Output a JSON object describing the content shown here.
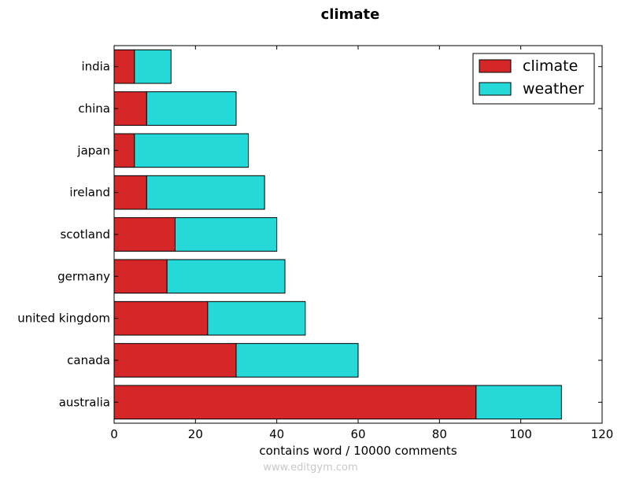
{
  "chart_data": {
    "type": "bar",
    "orientation": "horizontal",
    "stacked": true,
    "title": "climate",
    "xlabel": "contains word / 10000 comments",
    "ylabel": "",
    "xlim": [
      0,
      120
    ],
    "xticks": [
      "0",
      "20",
      "40",
      "60",
      "80",
      "100",
      "120"
    ],
    "categories": [
      "india",
      "china",
      "japan",
      "ireland",
      "scotland",
      "germany",
      "united kingdom",
      "canada",
      "australia"
    ],
    "series": [
      {
        "name": "climate",
        "color": "#d62728",
        "values": [
          5,
          8,
          5,
          8,
          15,
          13,
          23,
          30,
          89
        ]
      },
      {
        "name": "weather",
        "color": "#26d9d9",
        "values": [
          9,
          22,
          28,
          29,
          25,
          29,
          24,
          30,
          21
        ]
      }
    ],
    "legend": {
      "position": "top-right"
    },
    "grid": false
  },
  "watermark": "www.editgym.com"
}
